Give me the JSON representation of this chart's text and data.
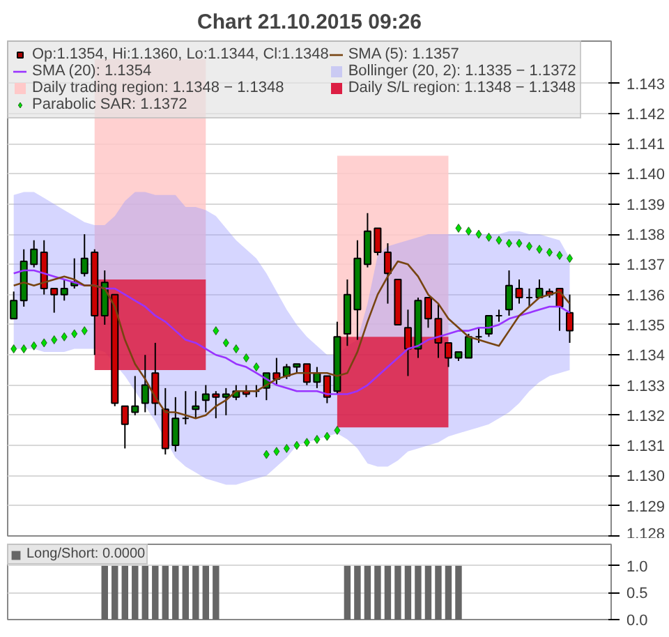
{
  "chart_data": [
    {
      "type": "candlestick",
      "title": "Chart 21.10.2015 09:26",
      "categories": [
        null,
        null,
        null,
        null,
        null,
        null,
        null,
        null,
        null,
        null,
        null,
        null,
        null,
        null,
        null,
        null,
        null,
        null,
        null,
        null,
        null,
        null,
        null,
        null,
        null,
        null,
        null,
        null,
        null,
        null,
        null,
        null,
        null,
        null,
        null,
        null,
        null,
        null,
        null,
        null,
        null,
        null,
        null,
        null,
        null,
        null,
        null,
        null,
        null,
        null,
        null,
        null,
        null,
        null,
        null,
        null
      ],
      "ylim": [
        1.128,
        1.1444
      ],
      "yticks": [
        1.128,
        1.129,
        {
          "value": 1.13,
          "label": "1.130"
        },
        1.131,
        1.132,
        1.133,
        1.134,
        1.135,
        1.136,
        1.137,
        1.138,
        1.139,
        {
          "value": 1.14,
          "label": "1.140"
        },
        1.141,
        1.142,
        1.143
      ],
      "grid": "y",
      "legend": "top left",
      "series": [
        {
          "type": "line",
          "name": "Daily trading region: 1.1348 − 1.1348",
          "color": "#ffc8c8",
          "values": [
            null,
            null,
            null,
            null,
            null,
            null,
            null,
            null,
            null,
            null,
            null,
            null,
            null,
            null,
            null,
            null,
            null,
            null,
            null,
            null,
            null,
            null,
            null,
            null,
            null,
            null,
            null,
            null,
            null,
            null,
            null,
            null,
            null,
            null,
            null,
            null,
            null,
            null,
            null,
            null,
            null,
            null,
            null,
            null,
            null,
            null,
            null,
            null,
            null,
            null,
            null,
            null,
            null,
            null,
            null,
            null
          ],
          "lower": [
            null,
            null,
            null,
            null,
            null,
            null,
            null,
            null,
            1.1365,
            1.1365,
            1.1365,
            1.1365,
            1.1365,
            1.1365,
            1.1365,
            1.1365,
            1.1365,
            1.1365,
            1.1365,
            1.1365,
            null,
            null,
            null,
            null,
            null,
            null,
            null,
            null,
            null,
            null,
            null,
            null,
            1.1346,
            1.1346,
            1.1346,
            1.1346,
            1.1346,
            1.1346,
            1.1346,
            1.1346,
            1.1346,
            1.1346,
            1.1346,
            1.1346,
            null,
            null,
            null,
            null,
            null,
            null,
            null,
            null,
            null,
            null,
            null,
            null
          ],
          "upper": [
            null,
            null,
            null,
            null,
            null,
            null,
            null,
            null,
            1.1438,
            1.1438,
            1.1438,
            1.1438,
            1.1438,
            1.1438,
            1.1438,
            1.1438,
            1.1438,
            1.1438,
            1.1438,
            1.1438,
            null,
            null,
            null,
            null,
            null,
            null,
            null,
            null,
            null,
            null,
            null,
            null,
            1.1406,
            1.1406,
            1.1406,
            1.1406,
            1.1406,
            1.1406,
            1.1406,
            1.1406,
            1.1406,
            1.1406,
            1.1406,
            1.1406,
            null,
            null,
            null,
            null,
            null,
            null,
            null,
            null,
            null,
            null,
            null,
            null
          ]
        },
        {
          "type": "line",
          "name": "Bollinger (20, 2): 1.1335 − 1.1372",
          "color": "#9999ff",
          "values": [
            null,
            null,
            null,
            null,
            null,
            null,
            null,
            null,
            null,
            null,
            null,
            null,
            null,
            null,
            null,
            null,
            null,
            null,
            null,
            null,
            null,
            null,
            null,
            null,
            null,
            null,
            null,
            null,
            null,
            null,
            null,
            null,
            null,
            null,
            null,
            null,
            null,
            null,
            null,
            null,
            null,
            null,
            null,
            null,
            null,
            null,
            null,
            null,
            null,
            null,
            null,
            null,
            null,
            null,
            null,
            null
          ],
          "upper": [
            1.1393,
            1.1394,
            1.1394,
            1.1392,
            1.139,
            1.1388,
            1.1386,
            1.1384,
            1.1383,
            1.1383,
            1.1386,
            1.1391,
            1.1394,
            1.1394,
            1.1393,
            1.1393,
            1.1393,
            1.1389,
            1.1389,
            1.1388,
            1.1386,
            1.1382,
            1.1378,
            1.1375,
            1.1372,
            1.1367,
            1.1361,
            1.1355,
            1.135,
            1.1346,
            1.1343,
            1.134,
            1.134,
            1.1343,
            1.1345,
            1.1357,
            1.1373,
            1.1376,
            1.1377,
            1.1378,
            1.1379,
            1.138,
            1.138,
            1.138,
            1.138,
            1.138,
            1.138,
            1.138,
            1.138,
            1.1381,
            1.1381,
            1.138,
            1.138,
            1.1379,
            1.1378,
            1.1372
          ],
          "lower": [
            1.1342,
            1.1342,
            1.1342,
            1.1341,
            1.1341,
            1.1341,
            1.1342,
            1.1342,
            1.1342,
            1.1341,
            1.1337,
            1.1333,
            1.1328,
            1.1323,
            1.1318,
            1.1312,
            1.1306,
            1.1303,
            1.1301,
            1.1299,
            1.1298,
            1.1297,
            1.1297,
            1.1298,
            1.1299,
            1.13,
            1.1303,
            1.1306,
            1.131,
            1.1311,
            1.1312,
            1.1313,
            1.1314,
            1.1312,
            1.1309,
            1.1304,
            1.1303,
            1.1303,
            1.1305,
            1.1308,
            1.1309,
            1.131,
            1.1311,
            1.1313,
            1.1314,
            1.1315,
            1.1316,
            1.1317,
            1.1319,
            1.1321,
            1.1324,
            1.1328,
            1.1331,
            1.1333,
            1.1334,
            1.1335
          ]
        },
        {
          "type": "line",
          "name": "Daily S/L region: 1.1348 − 1.1348",
          "color": "#dc1a40",
          "values": [
            null,
            null,
            null,
            null,
            null,
            null,
            null,
            null,
            null,
            null,
            null,
            null,
            null,
            null,
            null,
            null,
            null,
            null,
            null,
            null,
            null,
            null,
            null,
            null,
            null,
            null,
            null,
            null,
            null,
            null,
            null,
            null,
            null,
            null,
            null,
            null,
            null,
            null,
            null,
            null,
            null,
            null,
            null,
            null,
            null,
            null,
            null,
            null,
            null,
            null,
            null,
            null,
            null,
            null,
            null,
            null
          ],
          "lower": [
            null,
            null,
            null,
            null,
            null,
            null,
            null,
            null,
            1.1335,
            1.1335,
            1.1335,
            1.1335,
            1.1335,
            1.1335,
            1.1335,
            1.1335,
            1.1335,
            1.1335,
            1.1335,
            1.1335,
            null,
            null,
            null,
            null,
            null,
            null,
            null,
            null,
            null,
            null,
            null,
            null,
            1.1316,
            1.1316,
            1.1316,
            1.1316,
            1.1316,
            1.1316,
            1.1316,
            1.1316,
            1.1316,
            1.1316,
            1.1316,
            1.1316,
            null,
            null,
            null,
            null,
            null,
            null,
            null,
            null,
            null,
            null,
            null,
            null
          ],
          "upper": [
            null,
            null,
            null,
            null,
            null,
            null,
            null,
            null,
            1.1365,
            1.1365,
            1.1365,
            1.1365,
            1.1365,
            1.1365,
            1.1365,
            1.1365,
            1.1365,
            1.1365,
            1.1365,
            1.1365,
            null,
            null,
            null,
            null,
            null,
            null,
            null,
            null,
            null,
            null,
            null,
            null,
            1.1346,
            1.1346,
            1.1346,
            1.1346,
            1.1346,
            1.1346,
            1.1346,
            1.1346,
            1.1346,
            1.1346,
            1.1346,
            1.1346,
            null,
            null,
            null,
            null,
            null,
            null,
            null,
            null,
            null,
            null,
            null,
            null
          ]
        },
        {
          "type": "line",
          "name": "SMA (20): 1.1354",
          "color": "#9933ff",
          "values": [
            1.1367,
            1.1368,
            1.1368,
            1.1367,
            1.1366,
            1.1365,
            1.1364,
            1.1363,
            1.1363,
            1.1362,
            1.1362,
            1.136,
            1.1358,
            1.1356,
            1.1353,
            1.1351,
            1.1348,
            1.1345,
            1.1344,
            1.1342,
            1.134,
            1.1339,
            1.1337,
            1.1336,
            1.1334,
            1.1332,
            1.133,
            1.1329,
            1.1328,
            1.1328,
            1.1328,
            1.1327,
            1.1327,
            1.1327,
            1.1328,
            1.133,
            1.1333,
            1.1336,
            1.1339,
            1.1342,
            1.1343,
            1.1345,
            1.1346,
            1.1347,
            1.1348,
            1.1348,
            1.1349,
            1.1349,
            1.135,
            1.1352,
            1.1353,
            1.1354,
            1.1355,
            1.1356,
            1.1356,
            1.1354
          ]
        },
        {
          "type": "line",
          "name": "SMA (5): 1.1357",
          "color": "#774411",
          "values": [
            1.1363,
            1.1364,
            1.1363,
            1.1364,
            1.1365,
            1.1366,
            1.1365,
            1.1363,
            1.1363,
            1.1362,
            1.1356,
            1.1345,
            1.1337,
            1.1332,
            1.1326,
            1.1321,
            1.1321,
            1.132,
            1.1319,
            1.132,
            1.1323,
            1.1325,
            1.1328,
            1.1328,
            1.1328,
            1.133,
            1.1332,
            1.1333,
            1.1334,
            1.1334,
            1.1334,
            1.1334,
            1.1333,
            1.1334,
            1.1341,
            1.1351,
            1.136,
            1.1366,
            1.1371,
            1.137,
            1.1366,
            1.136,
            1.1357,
            1.1352,
            1.1349,
            1.1346,
            1.1345,
            1.1344,
            1.1343,
            1.1348,
            1.1353,
            1.1356,
            1.1359,
            1.136,
            1.1361,
            1.1357
          ]
        },
        {
          "type": "scatter",
          "name": "Parabolic SAR: 1.1372",
          "color": "#00dd00",
          "marker": "diamond",
          "values": [
            1.1342,
            1.1342,
            1.1343,
            1.1344,
            1.1345,
            1.1346,
            1.1347,
            1.1348,
            null,
            null,
            null,
            null,
            null,
            null,
            null,
            null,
            null,
            null,
            null,
            null,
            1.1348,
            1.1344,
            1.1342,
            1.1339,
            1.1336,
            1.1307,
            1.1308,
            1.1309,
            1.131,
            1.1311,
            1.1312,
            1.1313,
            1.1315,
            null,
            null,
            null,
            null,
            null,
            null,
            null,
            null,
            null,
            null,
            null,
            1.1382,
            1.1381,
            1.138,
            1.1379,
            1.1378,
            1.1377,
            1.1377,
            1.1376,
            1.1375,
            1.1374,
            1.1373,
            1.1372
          ]
        },
        {
          "type": "candlestick",
          "name": "Op:1.1354, Hi:1.1360, Lo:1.1344, Cl:1.1348",
          "color": "#aa0000",
          "colors": [
            "#008000",
            "#008000",
            "#008000",
            "#cc0000",
            "#cc0000",
            "#008000",
            "#008000",
            "#008000",
            "#cc0000",
            "#008000",
            "#cc0000",
            "#cc0000",
            "#008000",
            "#008000",
            "#cc0000",
            "#cc0000",
            "#008000",
            "#000000",
            "#008000",
            "#008000",
            "#cc0000",
            "#008000",
            "#008000",
            "#cc0000",
            "#000000",
            "#008000",
            "#cc0000",
            "#008000",
            "#008000",
            "#cc0000",
            "#008000",
            "#cc0000",
            "#008000",
            "#008000",
            "#008000",
            "#008000",
            "#cc0000",
            "#cc0000",
            "#cc0000",
            "#cc0000",
            "#008000",
            "#cc0000",
            "#cc0000",
            "#cc0000",
            "#008000",
            "#008000",
            "#000000",
            "#008000",
            "#000000",
            "#008000",
            "#cc0000",
            "#000000",
            "#008000",
            "#cc0000",
            "#cc0000",
            "#cc0000"
          ],
          "ohlc": [
            [
              1.1352,
              1.1361,
              1.1352,
              1.1358
            ],
            [
              1.1358,
              1.1375,
              1.1356,
              1.1371
            ],
            [
              1.137,
              1.1378,
              1.1369,
              1.1375
            ],
            [
              1.1374,
              1.1378,
              1.136,
              1.1362
            ],
            [
              1.1362,
              1.1362,
              1.1354,
              1.136
            ],
            [
              1.136,
              1.1365,
              1.1358,
              1.1362
            ],
            [
              1.1363,
              1.1372,
              1.1362,
              1.1364
            ],
            [
              1.1367,
              1.138,
              1.1366,
              1.1372
            ],
            [
              1.1374,
              1.1375,
              1.134,
              1.1353
            ],
            [
              1.1353,
              1.1368,
              1.135,
              1.1364
            ],
            [
              1.136,
              1.136,
              1.1323,
              1.1324
            ],
            [
              1.1323,
              1.1323,
              1.1309,
              1.1317
            ],
            [
              1.1321,
              1.1333,
              1.132,
              1.1323
            ],
            [
              1.1324,
              1.134,
              1.1321,
              1.133
            ],
            [
              1.1334,
              1.1344,
              1.132,
              1.1324
            ],
            [
              1.1322,
              1.1329,
              1.1307,
              1.1309
            ],
            [
              1.131,
              1.1326,
              1.1308,
              1.1319
            ],
            [
              1.1319,
              1.1328,
              1.1317,
              1.1319
            ],
            [
              1.1322,
              1.1328,
              1.1319,
              1.1323
            ],
            [
              1.1325,
              1.133,
              1.1321,
              1.1327
            ],
            [
              1.1327,
              1.1328,
              1.1319,
              1.1326
            ],
            [
              1.1326,
              1.1329,
              1.132,
              1.1327
            ],
            [
              1.1326,
              1.133,
              1.1325,
              1.1328
            ],
            [
              1.1328,
              1.133,
              1.1326,
              1.1327
            ],
            [
              1.1328,
              1.133,
              1.1326,
              1.1328
            ],
            [
              1.1329,
              1.1334,
              1.1325,
              1.1334
            ],
            [
              1.1334,
              1.1339,
              1.133,
              1.1332
            ],
            [
              1.1333,
              1.1337,
              1.1332,
              1.1336
            ],
            [
              1.1336,
              1.1337,
              1.1334,
              1.1337
            ],
            [
              1.1337,
              1.1337,
              1.133,
              1.1331
            ],
            [
              1.1331,
              1.1336,
              1.1329,
              1.1334
            ],
            [
              1.1333,
              1.1333,
              1.1324,
              1.1326
            ],
            [
              1.1328,
              1.1351,
              1.1327,
              1.1346
            ],
            [
              1.1347,
              1.1365,
              1.1343,
              1.136
            ],
            [
              1.1355,
              1.1378,
              1.1345,
              1.1372
            ],
            [
              1.137,
              1.1387,
              1.1369,
              1.1381
            ],
            [
              1.1382,
              1.1382,
              1.1373,
              1.1374
            ],
            [
              1.1374,
              1.1377,
              1.1357,
              1.1367
            ],
            [
              1.1365,
              1.1365,
              1.135,
              1.135
            ],
            [
              1.1349,
              1.1355,
              1.1333,
              1.1342
            ],
            [
              1.1342,
              1.1359,
              1.1339,
              1.1358
            ],
            [
              1.1359,
              1.1359,
              1.1349,
              1.1352
            ],
            [
              1.1352,
              1.1357,
              1.1339,
              1.1344
            ],
            [
              1.1344,
              1.1344,
              1.1336,
              1.1339
            ],
            [
              1.1339,
              1.1341,
              1.1338,
              1.1341
            ],
            [
              1.1339,
              1.1347,
              1.1339,
              1.1346
            ],
            [
              1.1346,
              1.1349,
              1.1344,
              1.1346
            ],
            [
              1.1347,
              1.1353,
              1.1346,
              1.1353
            ],
            [
              1.1353,
              1.1355,
              1.1351,
              1.1353
            ],
            [
              1.1355,
              1.1368,
              1.1353,
              1.1363
            ],
            [
              1.1362,
              1.1365,
              1.1357,
              1.1359
            ],
            [
              1.1359,
              1.1362,
              1.1356,
              1.1359
            ],
            [
              1.1359,
              1.1365,
              1.1359,
              1.1362
            ],
            [
              1.1361,
              1.1362,
              1.1359,
              1.136
            ],
            [
              1.1362,
              1.1362,
              1.1348,
              1.1356
            ],
            [
              1.1354,
              1.136,
              1.1344,
              1.1348
            ]
          ]
        }
      ]
    },
    {
      "type": "bar",
      "categories": [
        null,
        null,
        null,
        null,
        null,
        null,
        null,
        null,
        null,
        null,
        null,
        null,
        null,
        null,
        null,
        null,
        null,
        null,
        null,
        null,
        null,
        null,
        null,
        null,
        null,
        null,
        null,
        null,
        null,
        null,
        null,
        null,
        null,
        null,
        null,
        null,
        null,
        null,
        null,
        null,
        null,
        null,
        null,
        null,
        null,
        null,
        null,
        null,
        null,
        null,
        null,
        null,
        null,
        null,
        null,
        null
      ],
      "ylim": [
        0,
        1.4
      ],
      "yticks": [
        {
          "value": 0,
          "label": "0.0"
        },
        {
          "value": 0.5,
          "label": "0.5"
        },
        {
          "value": 1,
          "label": "1.0"
        }
      ],
      "grid": "y",
      "legend": "top left",
      "series": [
        {
          "name": "Long/Short: 0.0000",
          "color": "#666666",
          "values": [
            0,
            0,
            0,
            0,
            0,
            0,
            0,
            0,
            0,
            1,
            1,
            1,
            1,
            1,
            1,
            1,
            1,
            1,
            1,
            1,
            1,
            0,
            0,
            0,
            0,
            0,
            0,
            0,
            0,
            0,
            0,
            0,
            0,
            1,
            1,
            1,
            1,
            1,
            1,
            1,
            1,
            1,
            1,
            1,
            1,
            0,
            0,
            0,
            0,
            0,
            0,
            0,
            0,
            0,
            0,
            0
          ]
        }
      ]
    }
  ]
}
